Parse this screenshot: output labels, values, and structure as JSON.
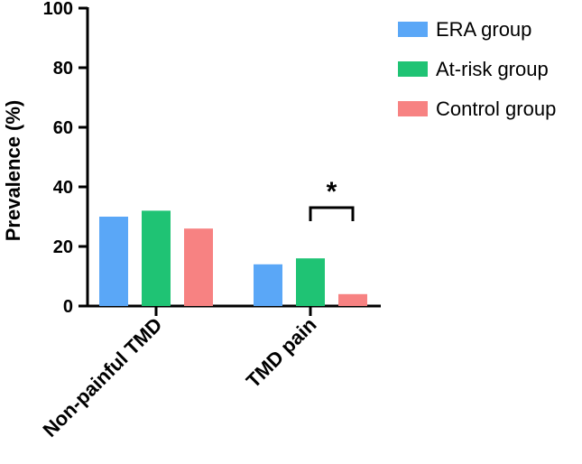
{
  "chart_data": {
    "type": "bar",
    "title": "",
    "xlabel": "",
    "ylabel": "Prevalence (%)",
    "ylim": [
      0,
      100
    ],
    "yticks": [
      0,
      20,
      40,
      60,
      80,
      100
    ],
    "categories": [
      "Non-painful TMD",
      "TMD pain"
    ],
    "series": [
      {
        "name": "ERA group",
        "color": "#5aa7f7",
        "values": [
          30,
          14
        ]
      },
      {
        "name": "At-risk group",
        "color": "#1fc374",
        "values": [
          32,
          16
        ]
      },
      {
        "name": "Control group",
        "color": "#f78282",
        "values": [
          26,
          4
        ]
      }
    ],
    "legend": "top-right",
    "annotations": [
      {
        "text": "*",
        "category": "TMD pain",
        "between": [
          "At-risk group",
          "Control group"
        ]
      }
    ]
  }
}
